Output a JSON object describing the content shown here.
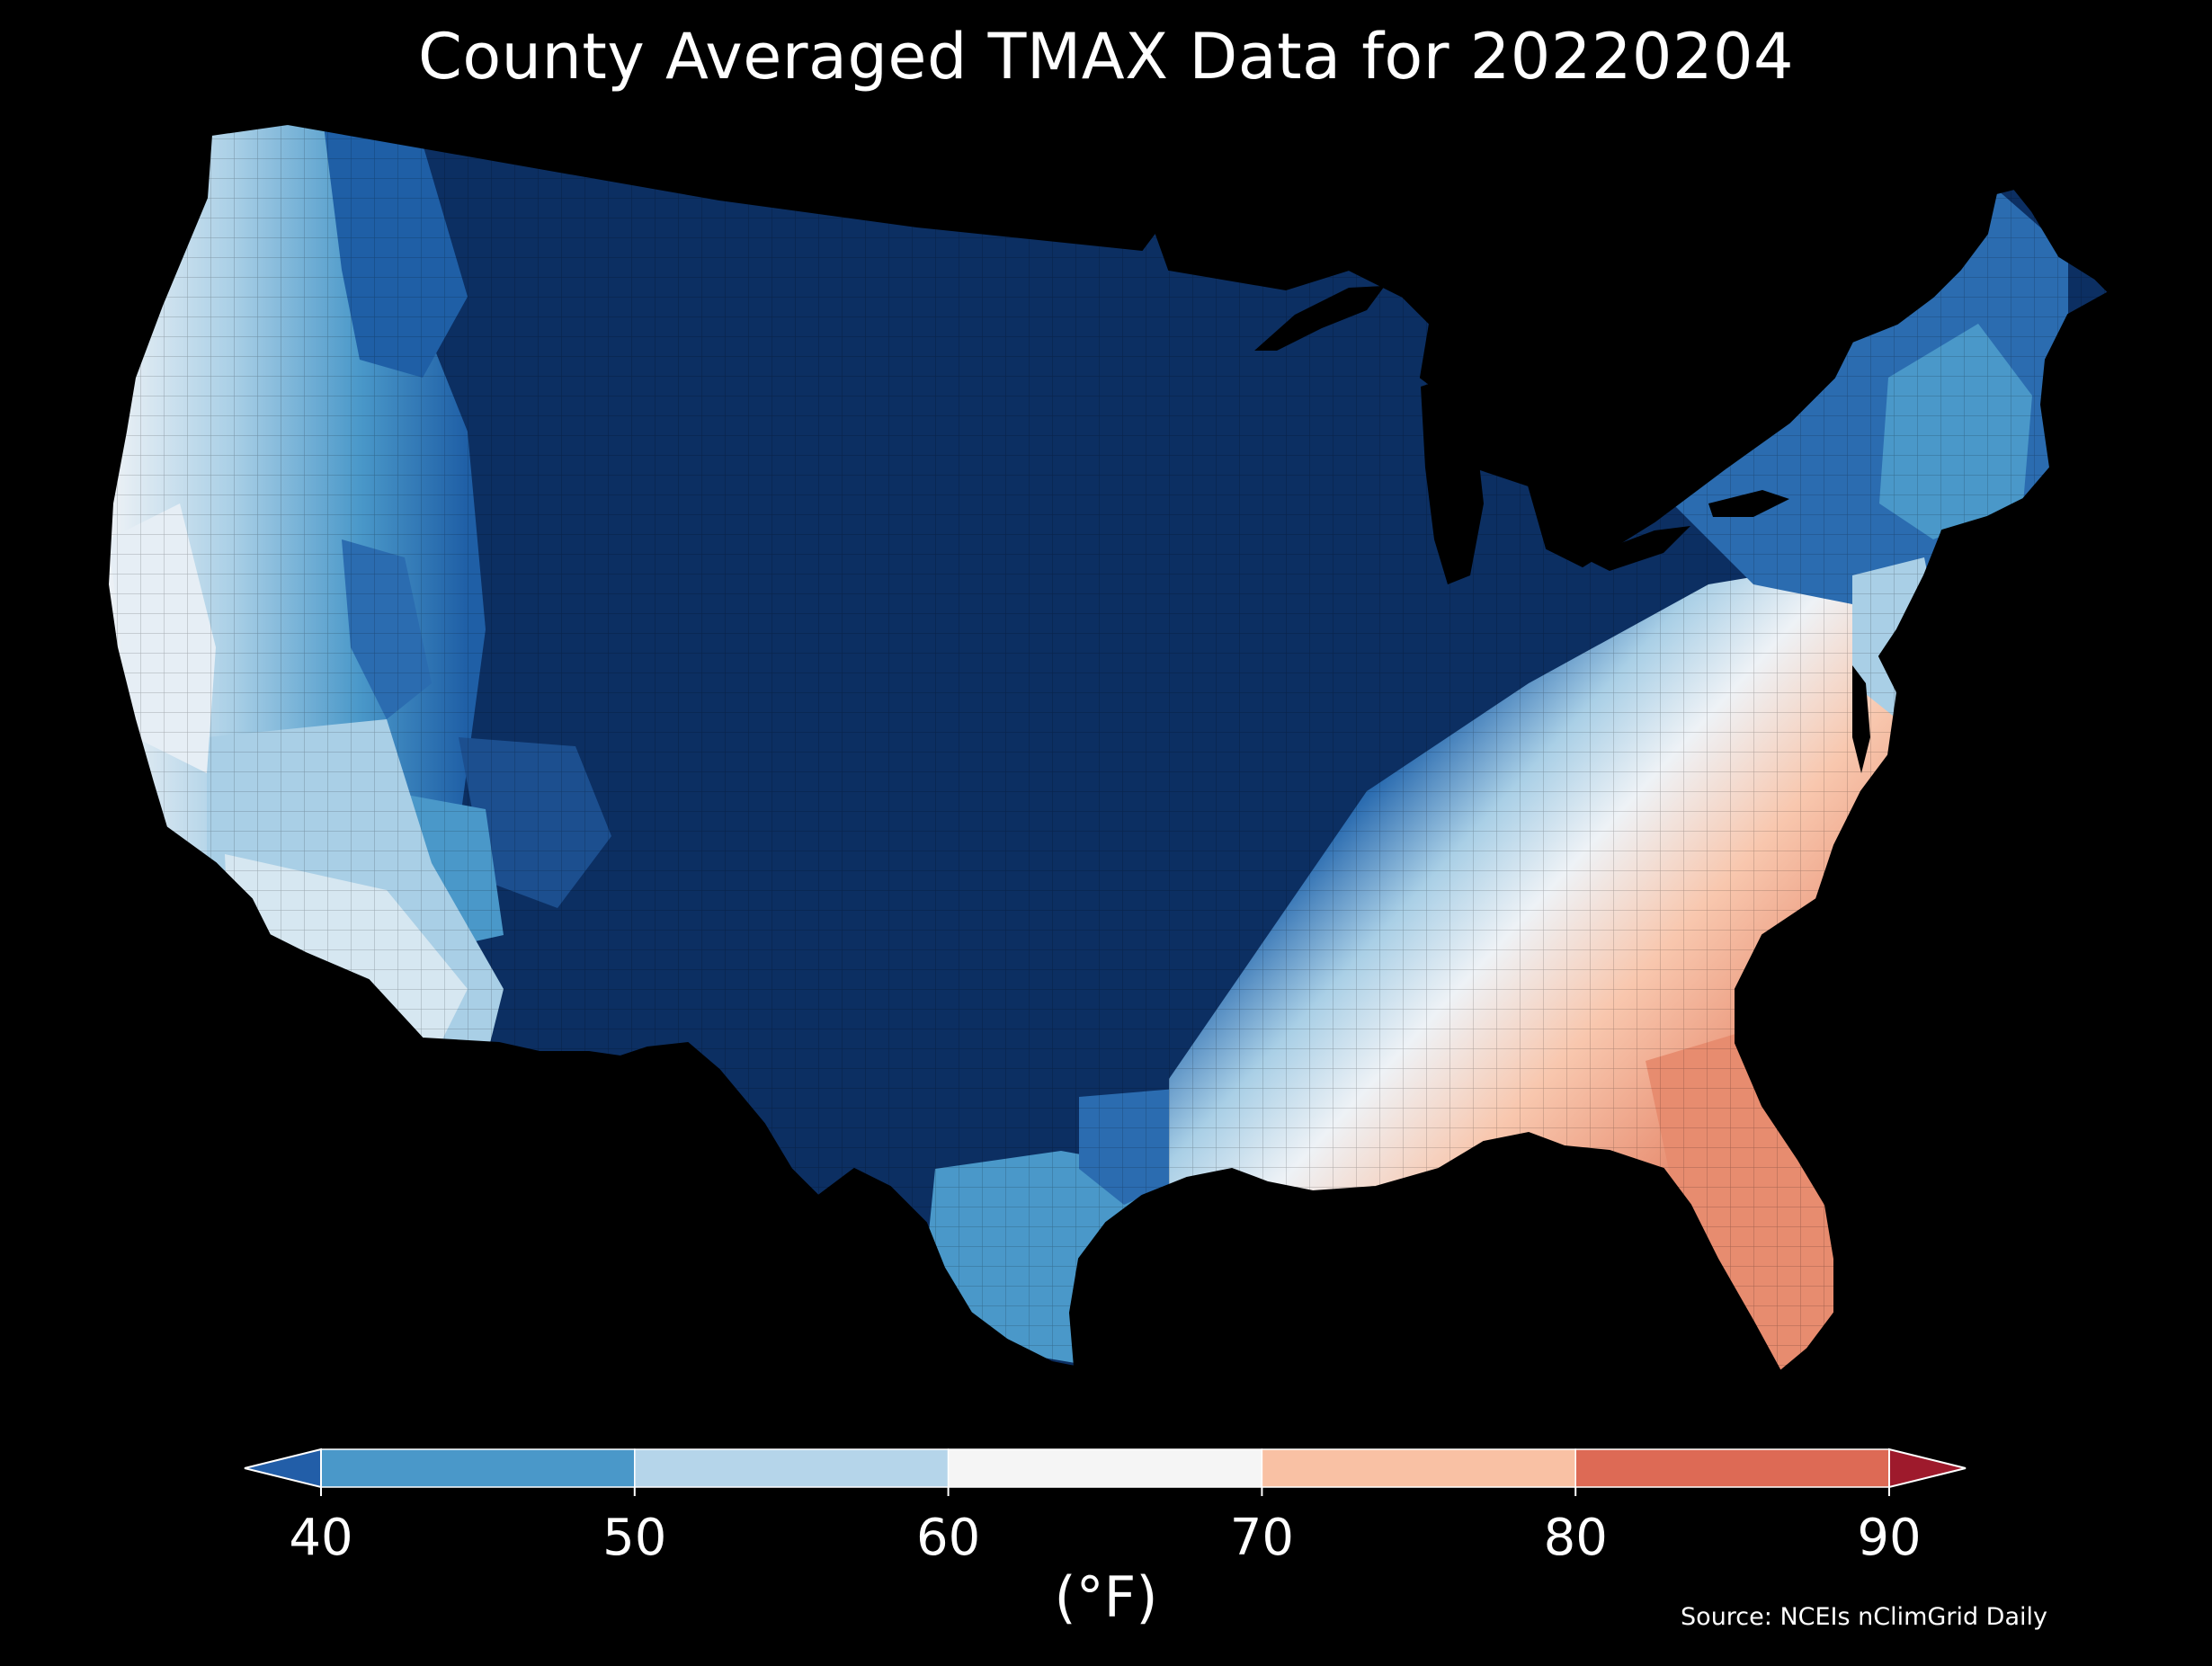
{
  "title": "County Averaged TMAX Data for 20220204",
  "colorbar": {
    "unit": "(°F)",
    "ticks": [
      "40",
      "50",
      "60",
      "70",
      "80",
      "90"
    ],
    "bins": [
      {
        "from": 40,
        "to": 50,
        "color": "#4a98c9"
      },
      {
        "from": 50,
        "to": 60,
        "color": "#b5d5ea"
      },
      {
        "from": 60,
        "to": 70,
        "color": "#f5f5f5"
      },
      {
        "from": 70,
        "to": 80,
        "color": "#f9c1a4"
      },
      {
        "from": 80,
        "to": 90,
        "color": "#dd6a55"
      }
    ],
    "under_color": "#225ea8",
    "over_color": "#9e1a2c"
  },
  "source": "Source: NCEIs nClimGrid Daily",
  "palette": {
    "very_cold": "#0c2f62",
    "cold": "#1f5fa6",
    "cool": "#4a98c9",
    "mild_cool": "#a9cfe6",
    "neutral": "#eef2f6",
    "warm": "#f8c7ae",
    "hot": "#e78c6f"
  }
}
